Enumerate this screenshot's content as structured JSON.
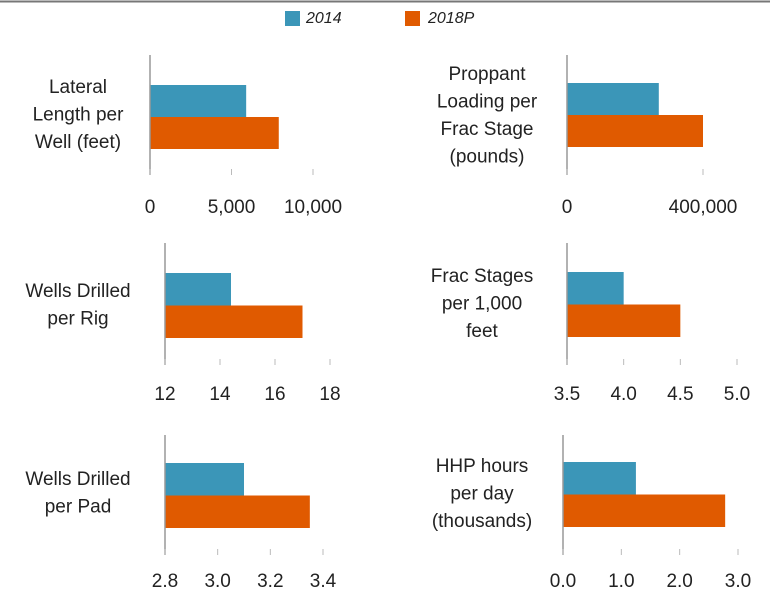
{
  "legend": [
    {
      "name": "2014",
      "color": "#3b96b8"
    },
    {
      "name": "2018P",
      "color": "#e05a00"
    }
  ],
  "chart_data": [
    {
      "type": "bar",
      "orientation": "horizontal",
      "ylabel": [
        "Lateral",
        "Length per",
        "Well (feet)"
      ],
      "series": [
        {
          "values": [
            5900
          ]
        },
        {
          "values": [
            7900
          ]
        }
      ],
      "xlim": [
        0,
        10000
      ],
      "xticks": [
        0,
        {
          "value": 5000,
          "label": "5,000"
        },
        {
          "value": 10000,
          "label": "10,000"
        }
      ]
    },
    {
      "type": "bar",
      "orientation": "horizontal",
      "ylabel": [
        "Proppant",
        "Loading per",
        "Frac Stage",
        "(pounds)"
      ],
      "series": [
        {
          "values": [
            270000
          ]
        },
        {
          "values": [
            400000
          ]
        }
      ],
      "xlim": [
        0,
        400000
      ],
      "xticks": [
        0,
        {
          "value": 400000,
          "label": "400,000"
        }
      ]
    },
    {
      "type": "bar",
      "orientation": "horizontal",
      "ylabel": [
        "Wells Drilled",
        "per Rig"
      ],
      "series": [
        {
          "values": [
            14.4
          ]
        },
        {
          "values": [
            17.0
          ]
        }
      ],
      "xlim": [
        12,
        18
      ],
      "xticks": [
        12,
        14,
        16,
        18
      ]
    },
    {
      "type": "bar",
      "orientation": "horizontal",
      "ylabel": [
        "Frac Stages",
        "per 1,000",
        "feet"
      ],
      "series": [
        {
          "values": [
            4.0
          ]
        },
        {
          "values": [
            4.5
          ]
        }
      ],
      "xlim": [
        3.5,
        5.0
      ],
      "xticks": [
        3.5,
        {
          "value": 4,
          "label": "4.0"
        },
        4.5,
        {
          "value": 5,
          "label": "5.0"
        }
      ]
    },
    {
      "type": "bar",
      "orientation": "horizontal",
      "ylabel": [
        "Wells Drilled",
        "per Pad"
      ],
      "series": [
        {
          "values": [
            3.1
          ]
        },
        {
          "values": [
            3.35
          ]
        }
      ],
      "xlim": [
        2.8,
        3.4
      ],
      "xticks": [
        2.8,
        {
          "value": 3,
          "label": "3.0"
        },
        3.2,
        3.4
      ]
    },
    {
      "type": "bar",
      "orientation": "horizontal",
      "ylabel": [
        "HHP hours",
        "per day",
        "(thousands)"
      ],
      "series": [
        {
          "values": [
            1.25
          ]
        },
        {
          "values": [
            2.78
          ]
        }
      ],
      "xlim": [
        0,
        3.0
      ],
      "xticks": [
        {
          "value": 0,
          "label": "0.0"
        },
        {
          "value": 1,
          "label": "1.0"
        },
        {
          "value": 2,
          "label": "2.0"
        },
        {
          "value": 3,
          "label": "3.0"
        }
      ]
    }
  ]
}
